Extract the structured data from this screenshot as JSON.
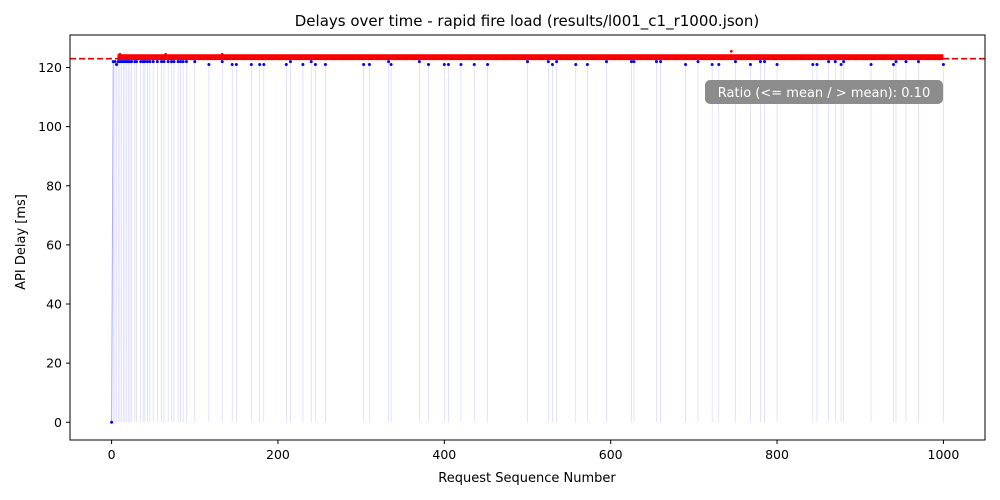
{
  "chart_data": {
    "type": "scatter",
    "title": "Delays over time - rapid fire load (results/l001_c1_r1000.json)",
    "xlabel": "Request Sequence Number",
    "ylabel": "API Delay [ms]",
    "xlim": [
      -50,
      1050
    ],
    "ylim": [
      -6,
      131
    ],
    "xticks": [
      0,
      200,
      400,
      600,
      800,
      1000
    ],
    "yticks": [
      0,
      20,
      40,
      60,
      80,
      100,
      120
    ],
    "mean_line": {
      "value": 123,
      "color": "#e00000",
      "style": "dashed"
    },
    "annotation": {
      "text": "Ratio (<= mean / > mean): 0.10",
      "position": "top-right",
      "background": "#8c8c8c"
    },
    "colors": {
      "below_or_equal_mean": "#0000ff",
      "above_mean": "#ff0000",
      "line": "#aaaaff"
    },
    "series": [
      {
        "label": "<= mean",
        "color": "#0000ff",
        "points": [
          [
            0,
            0
          ],
          [
            2,
            122
          ],
          [
            4,
            122
          ],
          [
            6,
            121
          ],
          [
            8,
            122
          ],
          [
            10,
            122
          ],
          [
            12,
            122
          ],
          [
            14,
            122
          ],
          [
            16,
            122
          ],
          [
            18,
            122
          ],
          [
            20,
            122
          ],
          [
            22,
            122
          ],
          [
            24,
            122
          ],
          [
            28,
            122
          ],
          [
            30,
            122
          ],
          [
            35,
            122
          ],
          [
            38,
            122
          ],
          [
            40,
            122
          ],
          [
            43,
            122
          ],
          [
            46,
            122
          ],
          [
            50,
            122
          ],
          [
            55,
            122
          ],
          [
            60,
            122
          ],
          [
            63,
            122
          ],
          [
            68,
            122
          ],
          [
            72,
            122
          ],
          [
            75,
            122
          ],
          [
            80,
            122
          ],
          [
            83,
            122
          ],
          [
            86,
            122
          ],
          [
            90,
            122
          ],
          [
            100,
            122
          ],
          [
            117,
            121
          ],
          [
            133,
            122
          ],
          [
            145,
            121
          ],
          [
            150,
            121
          ],
          [
            168,
            121
          ],
          [
            178,
            121
          ],
          [
            183,
            121
          ],
          [
            210,
            121
          ],
          [
            215,
            122
          ],
          [
            230,
            121
          ],
          [
            240,
            122
          ],
          [
            245,
            121
          ],
          [
            257,
            121
          ],
          [
            303,
            121
          ],
          [
            310,
            121
          ],
          [
            333,
            122
          ],
          [
            336,
            121
          ],
          [
            370,
            122
          ],
          [
            381,
            121
          ],
          [
            400,
            121
          ],
          [
            405,
            121
          ],
          [
            420,
            121
          ],
          [
            436,
            121
          ],
          [
            452,
            121
          ],
          [
            500,
            122
          ],
          [
            525,
            122
          ],
          [
            530,
            121
          ],
          [
            535,
            122
          ],
          [
            558,
            121
          ],
          [
            572,
            121
          ],
          [
            595,
            122
          ],
          [
            625,
            122
          ],
          [
            628,
            122
          ],
          [
            655,
            122
          ],
          [
            660,
            122
          ],
          [
            690,
            121
          ],
          [
            705,
            122
          ],
          [
            722,
            121
          ],
          [
            730,
            121
          ],
          [
            750,
            122
          ],
          [
            768,
            121
          ],
          [
            780,
            122
          ],
          [
            785,
            122
          ],
          [
            800,
            121
          ],
          [
            843,
            121
          ],
          [
            848,
            121
          ],
          [
            862,
            122
          ],
          [
            870,
            122
          ],
          [
            877,
            121
          ],
          [
            880,
            122
          ],
          [
            913,
            121
          ],
          [
            940,
            121
          ],
          [
            943,
            122
          ],
          [
            955,
            122
          ],
          [
            970,
            122
          ],
          [
            1000,
            121
          ]
        ]
      },
      {
        "label": "> mean",
        "color": "#ff0000",
        "band": {
          "x_from": 7,
          "x_to": 1000,
          "y_min": 122.5,
          "y_max": 124.5
        },
        "outliers": [
          [
            10,
            124.5
          ],
          [
            65,
            124.5
          ],
          [
            133,
            124.5
          ],
          [
            745,
            125.5
          ]
        ]
      }
    ]
  }
}
